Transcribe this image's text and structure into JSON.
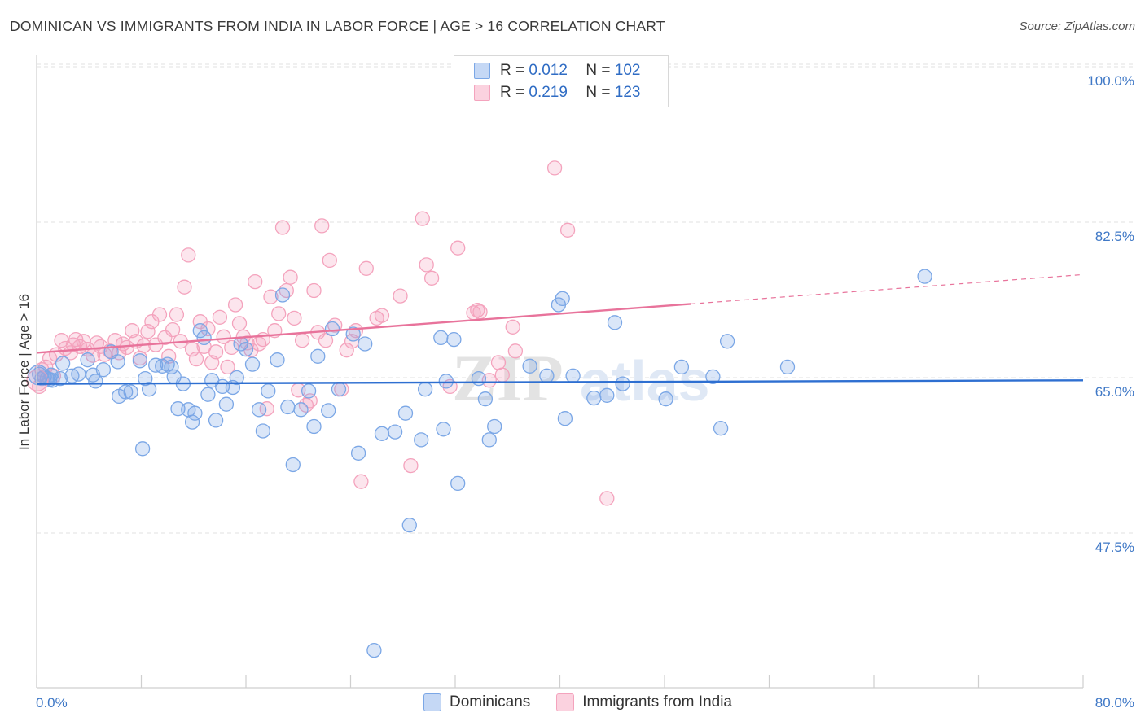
{
  "header": {
    "title": "DOMINICAN VS IMMIGRANTS FROM INDIA IN LABOR FORCE | AGE > 16 CORRELATION CHART",
    "source": "Source: ZipAtlas.com"
  },
  "stats_legend": {
    "rows": [
      {
        "r_label": "R =",
        "r_value": "0.012",
        "n_label": "N =",
        "n_value": "102",
        "color": "#7ba7e6"
      },
      {
        "r_label": "R =",
        "r_value": "0.219",
        "n_label": "N =",
        "n_value": "123",
        "color": "#f4a3bd"
      }
    ]
  },
  "watermark": {
    "zip": "ZIP",
    "atlas": "atlas"
  },
  "chart_data": {
    "type": "scatter",
    "title": "DOMINICAN VS IMMIGRANTS FROM INDIA IN LABOR FORCE | AGE > 16 CORRELATION CHART",
    "xlabel": "",
    "ylabel": "In Labor Force | Age > 16",
    "xlim": [
      0,
      80
    ],
    "ylim": [
      32.5,
      102
    ],
    "x_tick_labels": [
      "0.0%",
      "80.0%"
    ],
    "y_ticks": [
      {
        "value": 100,
        "label": "100.0%"
      },
      {
        "value": 82.5,
        "label": "82.5%"
      },
      {
        "value": 65,
        "label": "65.0%"
      },
      {
        "value": 47.5,
        "label": "47.5%"
      }
    ],
    "grid": "horizontal dashed",
    "legend_position": "bottom",
    "series": [
      {
        "name": "Dominicans",
        "color": "#7ba7e6",
        "line_color": "#2e6fd1",
        "trend": {
          "x0": 0,
          "y0": 64.3,
          "x1": 80,
          "y1": 64.7,
          "dashed_from": 80
        },
        "points": [
          [
            0.2,
            65.4
          ],
          [
            0.4,
            64.9
          ],
          [
            0.6,
            65.1
          ],
          [
            0.8,
            64.9
          ],
          [
            1,
            64.8
          ],
          [
            1.1,
            65.3
          ],
          [
            1.2,
            64.7
          ],
          [
            1.8,
            64.9
          ],
          [
            2,
            66.6
          ],
          [
            2.7,
            65.2
          ],
          [
            3.2,
            65.4
          ],
          [
            3.9,
            67.0
          ],
          [
            4.3,
            65.3
          ],
          [
            4.5,
            64.6
          ],
          [
            5.1,
            65.9
          ],
          [
            5.7,
            67.9
          ],
          [
            6.2,
            66.8
          ],
          [
            6.3,
            62.9
          ],
          [
            6.8,
            63.4
          ],
          [
            7.2,
            63.4
          ],
          [
            7.9,
            66.9
          ],
          [
            8.1,
            57.0
          ],
          [
            8.3,
            64.9
          ],
          [
            8.6,
            63.7
          ],
          [
            9.1,
            66.4
          ],
          [
            9.6,
            66.3
          ],
          [
            10,
            66.5
          ],
          [
            10.3,
            66.2
          ],
          [
            10.5,
            65.1
          ],
          [
            10.8,
            61.5
          ],
          [
            11.2,
            64.3
          ],
          [
            11.6,
            61.4
          ],
          [
            11.9,
            60.0
          ],
          [
            12.1,
            61.0
          ],
          [
            12.5,
            70.3
          ],
          [
            12.8,
            69.5
          ],
          [
            13.1,
            63.1
          ],
          [
            13.4,
            64.7
          ],
          [
            13.7,
            60.2
          ],
          [
            14.2,
            64.0
          ],
          [
            14.5,
            62.0
          ],
          [
            15,
            63.9
          ],
          [
            15.3,
            65.0
          ],
          [
            15.6,
            68.8
          ],
          [
            16,
            68.2
          ],
          [
            16.5,
            66.5
          ],
          [
            17,
            61.4
          ],
          [
            17.3,
            59.0
          ],
          [
            17.7,
            63.5
          ],
          [
            18.4,
            67.0
          ],
          [
            18.8,
            74.3
          ],
          [
            19.2,
            61.7
          ],
          [
            19.6,
            55.2
          ],
          [
            20.2,
            61.4
          ],
          [
            20.8,
            63.5
          ],
          [
            21.2,
            59.5
          ],
          [
            21.5,
            67.4
          ],
          [
            22.3,
            61.3
          ],
          [
            22.6,
            70.5
          ],
          [
            23.1,
            63.7
          ],
          [
            24.2,
            69.9
          ],
          [
            24.6,
            56.5
          ],
          [
            25.1,
            68.8
          ],
          [
            25.8,
            34.3
          ],
          [
            26.4,
            58.7
          ],
          [
            27.4,
            58.9
          ],
          [
            28.2,
            61.0
          ],
          [
            28.5,
            48.4
          ],
          [
            29.4,
            58.0
          ],
          [
            29.7,
            63.7
          ],
          [
            30.9,
            69.5
          ],
          [
            31.1,
            59.2
          ],
          [
            31.3,
            64.6
          ],
          [
            31.9,
            69.3
          ],
          [
            32.2,
            53.1
          ],
          [
            33.8,
            64.9
          ],
          [
            34.3,
            62.6
          ],
          [
            34.6,
            58.0
          ],
          [
            35,
            59.5
          ],
          [
            37.7,
            66.3
          ],
          [
            39,
            65.2
          ],
          [
            39.9,
            73.2
          ],
          [
            40.2,
            73.9
          ],
          [
            40.4,
            60.4
          ],
          [
            41,
            65.2
          ],
          [
            42.6,
            62.7
          ],
          [
            43.6,
            63.0
          ],
          [
            44.2,
            71.2
          ],
          [
            44.8,
            64.3
          ],
          [
            48.1,
            62.6
          ],
          [
            49.3,
            66.2
          ],
          [
            51.7,
            65.1
          ],
          [
            52.3,
            59.3
          ],
          [
            52.8,
            69.1
          ],
          [
            57.4,
            66.2
          ],
          [
            67.9,
            76.4
          ]
        ]
      },
      {
        "name": "Immigrants from India",
        "color": "#f4a3bd",
        "line_color": "#e8739b",
        "trend": {
          "x0": 0,
          "y0": 67.8,
          "x1": 50,
          "y1": 73.3,
          "dashed_to": 80,
          "dashed_y1": 76.6
        },
        "points": [
          [
            0.2,
            64.0
          ],
          [
            0.4,
            65.9
          ],
          [
            0.7,
            66.2
          ],
          [
            1,
            67.2
          ],
          [
            1.3,
            65.2
          ],
          [
            1.5,
            67.6
          ],
          [
            1.9,
            69.2
          ],
          [
            2.2,
            68.3
          ],
          [
            2.6,
            67.8
          ],
          [
            2.8,
            68.7
          ],
          [
            3,
            69.3
          ],
          [
            3.3,
            68.5
          ],
          [
            3.6,
            69.1
          ],
          [
            3.9,
            68.2
          ],
          [
            4.3,
            67.5
          ],
          [
            4.6,
            68.9
          ],
          [
            4.9,
            68.5
          ],
          [
            5.2,
            67.6
          ],
          [
            5.6,
            68.0
          ],
          [
            6,
            69.2
          ],
          [
            6.3,
            67.8
          ],
          [
            6.6,
            68.8
          ],
          [
            6.9,
            68.4
          ],
          [
            7.3,
            70.3
          ],
          [
            7.6,
            69.1
          ],
          [
            7.9,
            67.2
          ],
          [
            8.2,
            68.6
          ],
          [
            8.5,
            70.2
          ],
          [
            8.8,
            71.3
          ],
          [
            9.1,
            68.7
          ],
          [
            9.4,
            72.1
          ],
          [
            9.8,
            69.5
          ],
          [
            10.1,
            67.4
          ],
          [
            10.4,
            70.4
          ],
          [
            10.7,
            72.1
          ],
          [
            11,
            69.1
          ],
          [
            11.3,
            75.2
          ],
          [
            11.6,
            78.8
          ],
          [
            11.9,
            68.2
          ],
          [
            12.2,
            67.1
          ],
          [
            12.5,
            71.3
          ],
          [
            12.8,
            68.5
          ],
          [
            13.1,
            70.5
          ],
          [
            13.4,
            66.7
          ],
          [
            13.7,
            67.9
          ],
          [
            14,
            71.8
          ],
          [
            14.3,
            69.6
          ],
          [
            14.6,
            66.2
          ],
          [
            14.9,
            68.4
          ],
          [
            15.2,
            73.2
          ],
          [
            15.5,
            71.1
          ],
          [
            15.8,
            69.6
          ],
          [
            16.1,
            68.9
          ],
          [
            16.4,
            68.1
          ],
          [
            16.7,
            75.8
          ],
          [
            17,
            68.8
          ],
          [
            17.3,
            69.3
          ],
          [
            17.6,
            61.5
          ],
          [
            17.9,
            74.1
          ],
          [
            18.2,
            70.3
          ],
          [
            18.5,
            72.2
          ],
          [
            18.8,
            81.9
          ],
          [
            19.1,
            74.8
          ],
          [
            19.4,
            76.3
          ],
          [
            19.7,
            71.7
          ],
          [
            20,
            63.6
          ],
          [
            20.3,
            69.2
          ],
          [
            20.6,
            61.9
          ],
          [
            20.9,
            62.4
          ],
          [
            21.2,
            74.8
          ],
          [
            21.5,
            70.1
          ],
          [
            21.8,
            82.1
          ],
          [
            22.1,
            69.2
          ],
          [
            22.4,
            78.2
          ],
          [
            22.8,
            70.9
          ],
          [
            23.3,
            63.7
          ],
          [
            23.7,
            68.1
          ],
          [
            24.1,
            69.1
          ],
          [
            24.4,
            70.3
          ],
          [
            24.8,
            53.3
          ],
          [
            25.2,
            77.3
          ],
          [
            26,
            71.7
          ],
          [
            26.4,
            72.0
          ],
          [
            27.8,
            74.2
          ],
          [
            28.6,
            55.1
          ],
          [
            29.5,
            82.9
          ],
          [
            29.8,
            77.7
          ],
          [
            30.2,
            76.2
          ],
          [
            31.6,
            64.0
          ],
          [
            32.2,
            79.6
          ],
          [
            33.4,
            72.3
          ],
          [
            33.7,
            72.6
          ],
          [
            33.9,
            72.4
          ],
          [
            34.6,
            64.7
          ],
          [
            35.3,
            66.7
          ],
          [
            35.6,
            65.3
          ],
          [
            36.4,
            70.7
          ],
          [
            36.6,
            68.0
          ],
          [
            39.6,
            88.6
          ],
          [
            40.6,
            81.6
          ],
          [
            43.6,
            51.4
          ]
        ]
      }
    ]
  },
  "bottom_legend": {
    "items": [
      {
        "label": "Dominicans",
        "color": "#7ba7e6"
      },
      {
        "label": "Immigrants from India",
        "color": "#f4a3bd"
      }
    ]
  }
}
